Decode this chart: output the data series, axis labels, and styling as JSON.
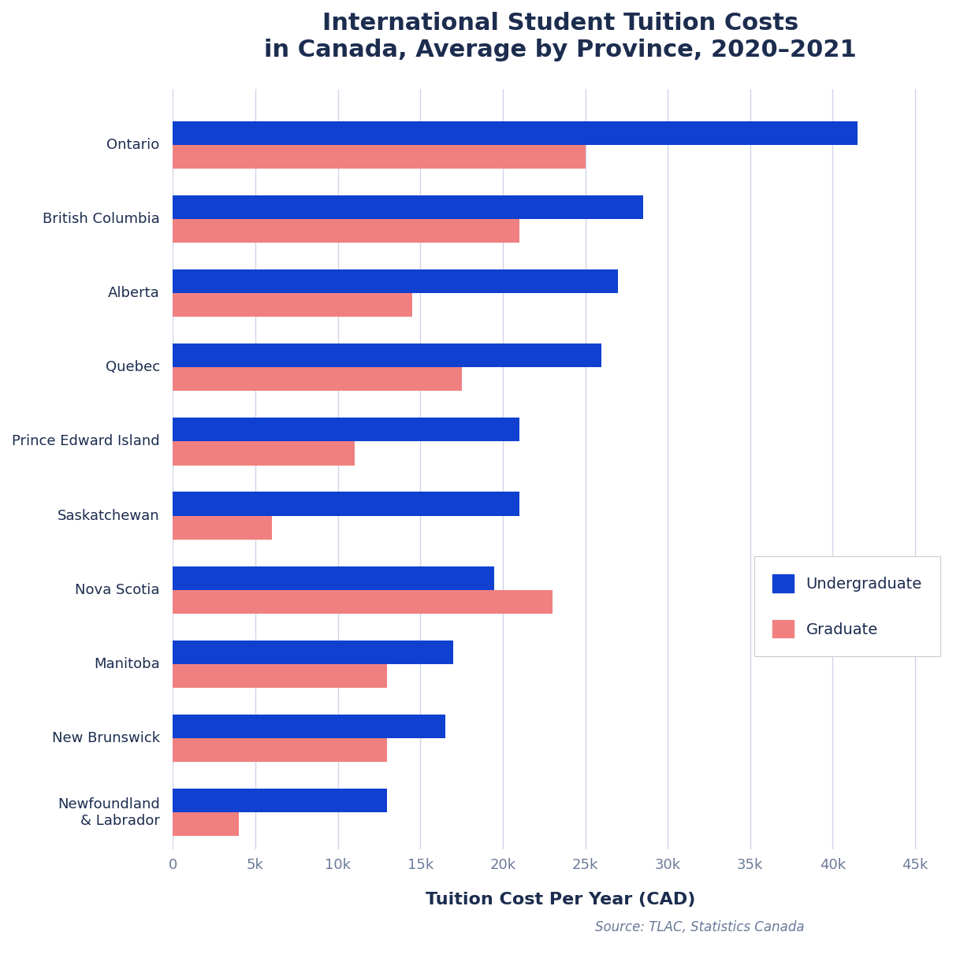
{
  "title": "International Student Tuition Costs\nin Canada, Average by Province, 2020–2021",
  "xlabel": "Tuition Cost Per Year (CAD)",
  "source": "Source: TLAC, Statistics Canada",
  "provinces": [
    "Ontario",
    "British Columbia",
    "Alberta",
    "Quebec",
    "Prince Edward Island",
    "Saskatchewan",
    "Nova Scotia",
    "Manitoba",
    "New Brunswick",
    "Newfoundland\n& Labrador"
  ],
  "undergraduate": [
    41500,
    28500,
    27000,
    26000,
    21000,
    21000,
    19500,
    17000,
    16500,
    13000
  ],
  "graduate": [
    25000,
    21000,
    14500,
    17500,
    11000,
    6000,
    23000,
    13000,
    13000,
    4000
  ],
  "undergrad_color": "#1040D0",
  "grad_color": "#F08080",
  "background_color": "#FFFFFF",
  "title_color": "#1C2D4F",
  "axis_label_color": "#6B7A99",
  "tick_color": "#6B7A99",
  "grid_color": "#D0D5E8",
  "xlim": [
    0,
    47000
  ],
  "xticks": [
    0,
    5000,
    10000,
    15000,
    20000,
    25000,
    30000,
    35000,
    40000,
    45000
  ],
  "xtick_labels": [
    "0",
    "5k",
    "10k",
    "15k",
    "20k",
    "25k",
    "30k",
    "35k",
    "40k",
    "45k"
  ],
  "bar_height": 0.32,
  "title_fontsize": 22,
  "label_fontsize": 16,
  "tick_fontsize": 13,
  "source_fontsize": 12,
  "legend_fontsize": 14
}
